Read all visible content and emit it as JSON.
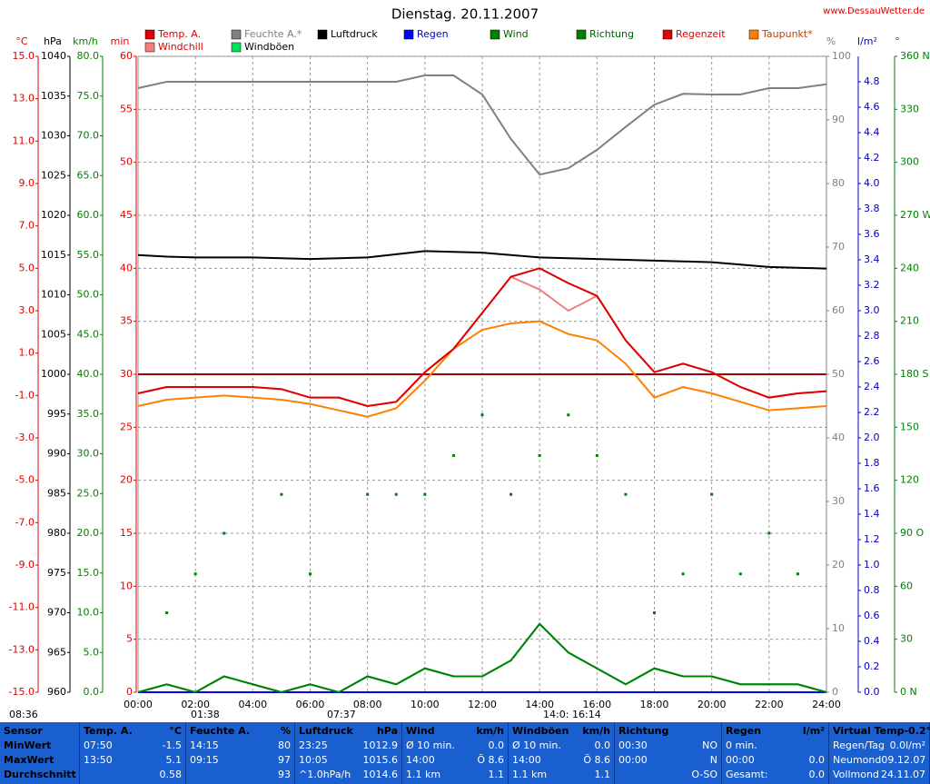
{
  "chart_data": {
    "type": "line",
    "title": "Dienstag. 20.11.2007",
    "source": "www.DessauWetter.de",
    "x": [
      0,
      1,
      2,
      3,
      4,
      5,
      6,
      7,
      8,
      9,
      10,
      11,
      12,
      13,
      14,
      15,
      16,
      17,
      18,
      19,
      20,
      21,
      22,
      23,
      24
    ],
    "xlim": [
      0,
      24
    ],
    "xticks": [
      {
        "value": 0,
        "label": "00:00"
      },
      {
        "value": 2,
        "label": "02:00"
      },
      {
        "value": 4,
        "label": "04:00"
      },
      {
        "value": 6,
        "label": "06:00"
      },
      {
        "value": 8,
        "label": "08:00"
      },
      {
        "value": 10,
        "label": "10:00"
      },
      {
        "value": 12,
        "label": "12:00"
      },
      {
        "value": 14,
        "label": "14:00"
      },
      {
        "value": 16,
        "label": "16:00"
      },
      {
        "value": 18,
        "label": "18:00"
      },
      {
        "value": 20,
        "label": "20:00"
      },
      {
        "value": 22,
        "label": "22:00"
      },
      {
        "value": 24,
        "label": "24:00"
      }
    ],
    "grid": true,
    "axes": [
      {
        "unit": "°C",
        "color": "#e00000",
        "lim": [
          -15,
          15
        ],
        "ticks": [
          {
            "value": 15,
            "label": "15.0"
          },
          {
            "value": 13,
            "label": "13.0"
          },
          {
            "value": 11,
            "label": "11.0"
          },
          {
            "value": 9,
            "label": "9.0"
          },
          {
            "value": 7,
            "label": "7.0"
          },
          {
            "value": 5,
            "label": "5.0"
          },
          {
            "value": 3,
            "label": "3.0"
          },
          {
            "value": 1,
            "label": "1.0"
          },
          {
            "value": -1,
            "label": "-1.0"
          },
          {
            "value": -3,
            "label": "-3.0"
          },
          {
            "value": -5,
            "label": "-5.0"
          },
          {
            "value": -7,
            "label": "-7.0"
          },
          {
            "value": -9,
            "label": "-9.0"
          },
          {
            "value": -11,
            "label": "-11.0"
          },
          {
            "value": -13,
            "label": "-13.0"
          },
          {
            "value": -15,
            "label": "-15.0"
          }
        ]
      },
      {
        "unit": "hPa",
        "color": "#000000",
        "lim": [
          960,
          1040
        ],
        "ticks": [
          1040,
          1035,
          1030,
          1025,
          1020,
          1015,
          1010,
          1005,
          1000,
          995,
          990,
          985,
          980,
          975,
          970,
          965,
          960
        ]
      },
      {
        "unit": "km/h",
        "color": "#008000",
        "lim": [
          0,
          80
        ],
        "ticks": [
          {
            "value": 80,
            "label": "80.0"
          },
          {
            "value": 75,
            "label": "75.0"
          },
          {
            "value": 70,
            "label": "70.0"
          },
          {
            "value": 65,
            "label": "65.0"
          },
          {
            "value": 60,
            "label": "60.0"
          },
          {
            "value": 55,
            "label": "55.0"
          },
          {
            "value": 50,
            "label": "50.0"
          },
          {
            "value": 45,
            "label": "45.0"
          },
          {
            "value": 40,
            "label": "40.0"
          },
          {
            "value": 35,
            "label": "35.0"
          },
          {
            "value": 30,
            "label": "30.0"
          },
          {
            "value": 25,
            "label": "25.0"
          },
          {
            "value": 20,
            "label": "20.0"
          },
          {
            "value": 15,
            "label": "15.0"
          },
          {
            "value": 10,
            "label": "10.0"
          },
          {
            "value": 5,
            "label": "5.0"
          },
          {
            "value": 0,
            "label": "0.0"
          }
        ]
      },
      {
        "unit": "min",
        "color": "#e00000",
        "lim": [
          0,
          60
        ],
        "ticks": [
          60,
          55,
          50,
          45,
          40,
          35,
          30,
          25,
          20,
          15,
          10,
          5,
          0
        ]
      },
      {
        "unit": "%",
        "color": "#808080",
        "lim": [
          0,
          100
        ],
        "ticks": [
          100,
          90,
          80,
          70,
          60,
          50,
          40,
          30,
          20,
          10,
          0
        ]
      },
      {
        "unit": "l/m²",
        "color": "#0000c0",
        "lim": [
          0,
          5
        ],
        "ticks": [
          {
            "value": 4.8,
            "label": "4.8"
          },
          {
            "value": 4.6,
            "label": "4.6"
          },
          {
            "value": 4.4,
            "label": "4.4"
          },
          {
            "value": 4.2,
            "label": "4.2"
          },
          {
            "value": 4,
            "label": "4.0"
          },
          {
            "value": 3.8,
            "label": "3.8"
          },
          {
            "value": 3.6,
            "label": "3.6"
          },
          {
            "value": 3.4,
            "label": "3.4"
          },
          {
            "value": 3.2,
            "label": "3.2"
          },
          {
            "value": 3,
            "label": "3.0"
          },
          {
            "value": 2.8,
            "label": "2.8"
          },
          {
            "value": 2.6,
            "label": "2.6"
          },
          {
            "value": 2.4,
            "label": "2.4"
          },
          {
            "value": 2.2,
            "label": "2.2"
          },
          {
            "value": 2,
            "label": "2.0"
          },
          {
            "value": 1.8,
            "label": "1.8"
          },
          {
            "value": 1.6,
            "label": "1.6"
          },
          {
            "value": 1.4,
            "label": "1.4"
          },
          {
            "value": 1.2,
            "label": "1.2"
          },
          {
            "value": 1,
            "label": "1.0"
          },
          {
            "value": 0.8,
            "label": "0.8"
          },
          {
            "value": 0.6,
            "label": "0.6"
          },
          {
            "value": 0.4,
            "label": "0.4"
          },
          {
            "value": 0.2,
            "label": "0.2"
          },
          {
            "value": 0,
            "label": "0.0"
          }
        ]
      },
      {
        "unit": "°",
        "color": "#008000",
        "lim": [
          0,
          360
        ],
        "ticks": [
          {
            "value": 360,
            "label": "360 N"
          },
          330,
          300,
          {
            "value": 270,
            "label": "270 W"
          },
          240,
          210,
          {
            "value": 180,
            "label": "180 S"
          },
          150,
          120,
          {
            "value": 90,
            "label": "90 O"
          },
          60,
          30,
          {
            "value": 0,
            "label": "0 N"
          }
        ]
      }
    ],
    "series": [
      {
        "name": "Temp. A.",
        "color": "#e00000",
        "axis": 0,
        "values": [
          -0.9,
          -0.6,
          -0.6,
          -0.6,
          -0.6,
          -0.7,
          -1.1,
          -1.1,
          -1.5,
          -1.3,
          0.1,
          1.2,
          2.9,
          4.6,
          5.0,
          4.3,
          3.7,
          1.6,
          0.1,
          0.5,
          0.1,
          -0.6,
          -1.1,
          -0.9,
          -0.8
        ]
      },
      {
        "name": "Feuchte A.*",
        "color": "#808080",
        "axis": 4,
        "values": [
          95,
          96,
          96,
          96,
          96,
          96,
          96,
          96,
          96,
          96,
          97,
          97,
          94,
          87,
          81.4,
          82.4,
          85.3,
          88.9,
          92.4,
          94.1,
          94,
          94,
          95,
          95,
          95.6
        ]
      },
      {
        "name": "Luftdruck",
        "color": "#000000",
        "axis": 1,
        "values": [
          1015.0,
          1014.8,
          1014.7,
          1014.7,
          1014.7,
          1014.6,
          1014.5,
          1014.6,
          1014.7,
          1015.1,
          1015.5,
          1015.4,
          1015.3,
          1015.0,
          1014.7,
          1014.6,
          1014.5,
          1014.4,
          1014.3,
          1014.2,
          1014.1,
          1013.8,
          1013.5,
          1013.4,
          1013.3
        ]
      },
      {
        "name": "Regen",
        "color": "#0000ff",
        "axis": 5,
        "values": [
          0,
          0,
          0,
          0,
          0,
          0,
          0,
          0,
          0,
          0,
          0,
          0,
          0,
          0,
          0,
          0,
          0,
          0,
          0,
          0,
          0,
          0,
          0,
          0,
          0
        ]
      },
      {
        "name": "Wind",
        "color": "#008000",
        "axis": 2,
        "values": [
          0,
          1,
          0,
          2,
          1,
          0,
          1,
          0,
          2,
          1,
          3,
          2,
          2,
          4,
          8.6,
          5,
          3,
          1,
          3,
          2,
          2,
          1,
          1,
          1,
          0
        ]
      },
      {
        "name": "Richtung",
        "color": "#008000",
        "axis": 6,
        "style": "dots",
        "values": [
          null,
          45,
          67,
          90,
          null,
          112,
          67,
          null,
          112,
          112,
          112,
          134,
          157,
          112,
          134,
          157,
          134,
          112,
          45,
          67,
          112,
          67,
          90,
          67,
          null
        ]
      },
      {
        "name": "Regenzeit",
        "color": "#e00000",
        "axis": 3,
        "values": [
          0,
          0,
          0,
          0,
          0,
          0,
          0,
          0,
          0,
          0,
          0,
          0,
          0,
          0,
          0,
          0,
          0,
          0,
          0,
          0,
          0,
          0,
          0,
          0,
          0
        ]
      },
      {
        "name": "Taupunkt*",
        "color": "#ff8000",
        "axis": 0,
        "values": [
          -1.5,
          -1.2,
          -1.1,
          -1.0,
          -1.1,
          -1.2,
          -1.4,
          -1.7,
          -2.0,
          -1.6,
          -0.3,
          1.2,
          2.1,
          2.4,
          2.5,
          1.9,
          1.6,
          0.5,
          -1.1,
          -0.6,
          -0.9,
          -1.3,
          -1.7,
          -1.6,
          -1.5
        ]
      },
      {
        "name": "Windchill",
        "color": "#f08080",
        "axis": 0,
        "values": [
          -0.9,
          -0.6,
          -0.6,
          -0.6,
          -0.6,
          -0.7,
          -1.1,
          -1.1,
          -1.5,
          -1.3,
          0.1,
          1.2,
          2.9,
          4.6,
          4.0,
          3.0,
          3.7,
          1.6,
          0.1,
          0.5,
          0.1,
          -0.6,
          -1.1,
          -0.9,
          -0.8
        ]
      },
      {
        "name": "Windböen",
        "color": "#00e060",
        "axis": 2,
        "values": [
          0,
          1,
          0,
          2,
          1,
          0,
          1,
          0,
          2,
          1,
          3,
          2,
          2,
          4,
          8.6,
          5,
          3,
          1,
          3,
          2,
          2,
          1,
          1,
          1,
          0
        ]
      }
    ],
    "astro_times": [
      "08:36",
      "01:38",
      "07:37",
      "14:0:",
      "16:14"
    ]
  },
  "stats": {
    "rows": [
      [
        {
          "l": "Sensor"
        },
        {
          "l": "Temp. A.",
          "r": "°C"
        },
        {
          "l": "Feuchte A.",
          "r": "%"
        },
        {
          "l": "Luftdruck",
          "r": "hPa"
        },
        {
          "l": "Wind",
          "r": "km/h"
        },
        {
          "l": "Windböen",
          "r": "km/h"
        },
        {
          "l": "Richtung"
        },
        {
          "l": "Regen",
          "r": "l/m²"
        },
        {
          "l": "Virtual Temp",
          "r": "-0.2°C"
        }
      ],
      [
        {
          "l": "MinWert"
        },
        {
          "l": "07:50",
          "r": "-1.5"
        },
        {
          "l": "14:15",
          "r": "80"
        },
        {
          "l": "23:25",
          "r": "1012.9"
        },
        {
          "l": "Ø 10 min.",
          "r": "0.0"
        },
        {
          "l": "Ø 10 min.",
          "r": "0.0"
        },
        {
          "l": "00:30",
          "r": "NO"
        },
        {
          "l": "0 min."
        },
        {
          "l": "Regen/Tag",
          "r": "0.0l/m²"
        }
      ],
      [
        {
          "l": "MaxWert"
        },
        {
          "l": "13:50",
          "r": "5.1"
        },
        {
          "l": "09:15",
          "r": "97"
        },
        {
          "l": "10:05",
          "r": "1015.6"
        },
        {
          "l": "14:00",
          "r": "Ö 8.6"
        },
        {
          "l": "14:00",
          "r": "Ö 8.6"
        },
        {
          "l": "00:00",
          "r": "N"
        },
        {
          "l": "00:00",
          "r": "0.0"
        },
        {
          "l": "Neumond",
          "r": "09.12.07"
        }
      ],
      [
        {
          "l": "Durchschnitt"
        },
        {
          "r": "0.58"
        },
        {
          "r": "93"
        },
        {
          "l": "^1.0hPa/h",
          "r": "1014.6"
        },
        {
          "l": "1.1 km",
          "r": "1.1"
        },
        {
          "l": "1.1 km",
          "r": "1.1"
        },
        {
          "r": "O-SO"
        },
        {
          "l": "Gesamt:",
          "r": "0.0"
        },
        {
          "l": "Vollmond",
          "r": "24.11.07"
        }
      ]
    ]
  }
}
